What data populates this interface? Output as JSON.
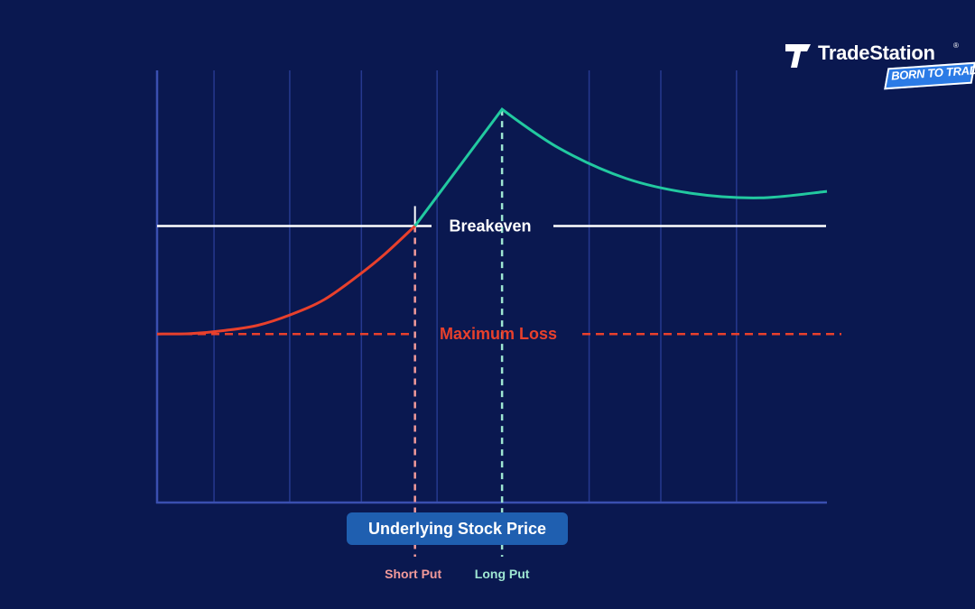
{
  "brand": {
    "name": "TradeStation",
    "reg_mark": "®",
    "tagline": "BORN TO TRADE",
    "tag_color": "#2b7be6"
  },
  "colors": {
    "background": "#0a1850",
    "axis": "#3a4fb0",
    "gridline": "#26398f",
    "breakeven": "#ffffff",
    "loss_curve": "#e8402c",
    "profit_curve": "#22c9a0",
    "short_put": "#f29a9a",
    "long_put": "#9ee6d2",
    "badge_bg": "#1f5fb0"
  },
  "chart_data": {
    "type": "line",
    "title": "",
    "xlabel": "Underlying Stock Price",
    "ylabel": "",
    "x_range": [
      0,
      100
    ],
    "y_range": [
      0,
      100
    ],
    "grid": {
      "vertical": true,
      "horizontal": false
    },
    "vertical_gridlines_x": [
      8.5,
      19.8,
      30.5,
      41.8,
      64.5,
      75.2,
      86.5
    ],
    "breakeven_level": 64,
    "max_loss_level": 39,
    "short_put_x": 38.5,
    "long_put_x": 51.5,
    "annotations": {
      "breakeven": "Breakeven",
      "max_loss": "Maximum Loss",
      "short_put": "Short Put",
      "long_put": "Long Put"
    },
    "series": [
      {
        "segment": "loss",
        "x": [
          0,
          5,
          10,
          15,
          20,
          25,
          30,
          34,
          38.5
        ],
        "y": [
          39,
          39.1,
          39.8,
          41,
          43.5,
          47,
          52.5,
          57.5,
          64
        ]
      },
      {
        "segment": "profit",
        "x": [
          38.5,
          51.5,
          60,
          70,
          80,
          90,
          100
        ],
        "y": [
          64,
          91,
          82,
          75,
          71.5,
          70.5,
          72
        ]
      }
    ]
  }
}
